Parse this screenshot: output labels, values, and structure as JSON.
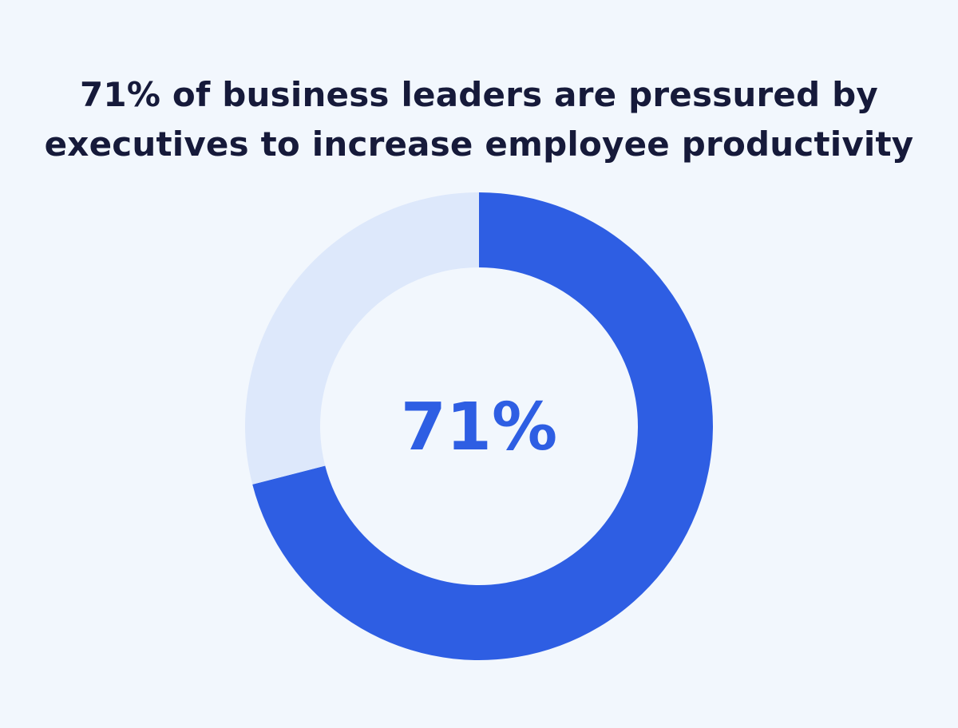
{
  "title": {
    "line1": "71% of business leaders are pressured by",
    "line2": "executives to increase employee productivity"
  },
  "colors": {
    "background": "#f2f7fd",
    "title": "#161a3a",
    "accent": "#2e5ee3",
    "track": "#dde8fb"
  },
  "chart_data": {
    "type": "pie",
    "style": "donut",
    "slices": [
      {
        "value": 71,
        "color": "#2e5ee3"
      },
      {
        "value": 29,
        "color": "#dde8fb"
      }
    ],
    "start_angle": "12 o'clock",
    "direction": "clockwise",
    "center_label": "71%"
  }
}
